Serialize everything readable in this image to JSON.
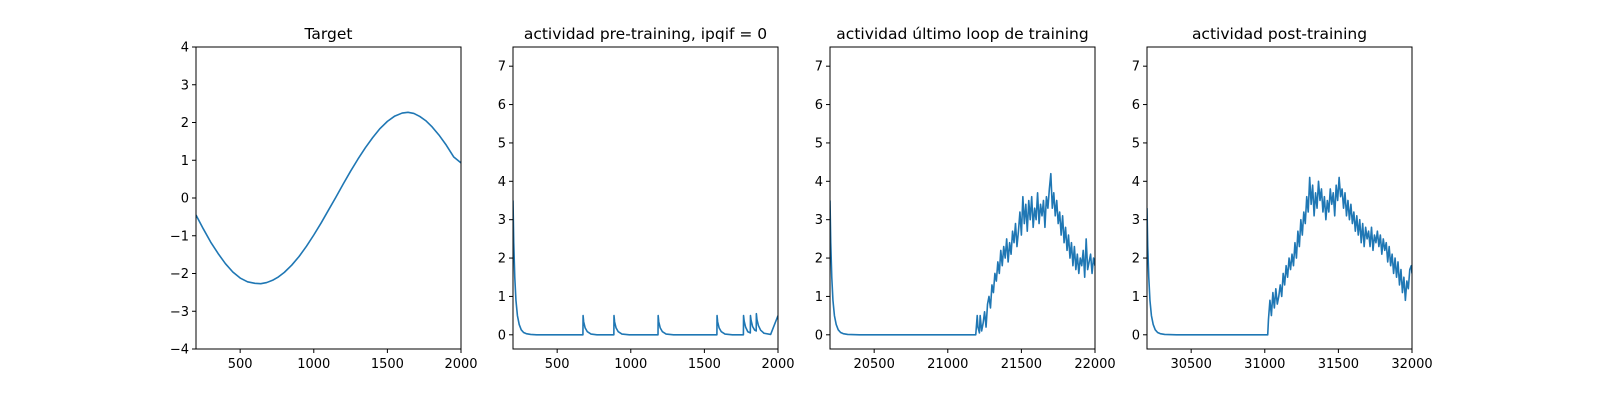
{
  "chart_data": [
    {
      "type": "line",
      "title": "Target",
      "xlabel": "",
      "ylabel": "",
      "xlim": [
        200,
        2000
      ],
      "ylim": [
        -4,
        4
      ],
      "xticks": [
        500,
        1000,
        1500,
        2000
      ],
      "xtick_labels": [
        "500",
        "1000",
        "1500",
        "2000"
      ],
      "yticks": [
        -4,
        -3,
        -2,
        -1,
        0,
        1,
        2,
        3,
        4
      ],
      "ytick_labels": [
        "−4",
        "−3",
        "−2",
        "−1",
        "0",
        "1",
        "2",
        "3",
        "4"
      ],
      "grid": false,
      "color": "#1f77b4",
      "series": [
        {
          "x": [
            200,
            250,
            300,
            350,
            400,
            450,
            500,
            550,
            600,
            640,
            680,
            720,
            760,
            800,
            850,
            900,
            950,
            1000,
            1050,
            1100,
            1150,
            1200,
            1250,
            1300,
            1350,
            1400,
            1450,
            1500,
            1550,
            1600,
            1640,
            1680,
            1720,
            1760,
            1800,
            1850,
            1900,
            1950,
            2000
          ],
          "y": [
            -0.45,
            -0.82,
            -1.17,
            -1.47,
            -1.74,
            -1.96,
            -2.12,
            -2.22,
            -2.26,
            -2.27,
            -2.24,
            -2.18,
            -2.09,
            -1.97,
            -1.78,
            -1.55,
            -1.28,
            -0.98,
            -0.66,
            -0.32,
            0.02,
            0.37,
            0.71,
            1.03,
            1.33,
            1.6,
            1.84,
            2.03,
            2.17,
            2.25,
            2.27,
            2.24,
            2.16,
            2.05,
            1.9,
            1.67,
            1.4,
            1.09,
            0.93
          ]
        }
      ]
    },
    {
      "type": "line",
      "title": "actividad pre-training, ipqif = 0",
      "xlabel": "",
      "ylabel": "",
      "xlim": [
        200,
        2000
      ],
      "ylim": [
        -0.37,
        7.5
      ],
      "xticks": [
        500,
        1000,
        1500,
        2000
      ],
      "xtick_labels": [
        "500",
        "1000",
        "1500",
        "2000"
      ],
      "yticks": [
        0,
        1,
        2,
        3,
        4,
        5,
        6,
        7
      ],
      "ytick_labels": [
        "0",
        "1",
        "2",
        "3",
        "4",
        "5",
        "6",
        "7"
      ],
      "grid": false,
      "color": "#1f77b4",
      "series": [
        {
          "x": [
            200,
            205,
            212,
            220,
            230,
            242,
            256,
            272,
            290,
            320,
            360,
            420,
            500,
            600,
            675,
            676,
            680,
            690,
            705,
            730,
            770,
            820,
            885,
            886,
            890,
            900,
            915,
            940,
            990,
            1080,
            1185,
            1186,
            1190,
            1200,
            1215,
            1240,
            1290,
            1400,
            1500,
            1585,
            1586,
            1590,
            1600,
            1615,
            1640,
            1690,
            1760,
            1765,
            1766,
            1770,
            1780,
            1795,
            1812,
            1813,
            1817,
            1827,
            1842,
            1852,
            1853,
            1857,
            1867,
            1882,
            1905,
            1950,
            2000
          ],
          "y": [
            3.5,
            2.4,
            1.5,
            0.9,
            0.5,
            0.27,
            0.13,
            0.06,
            0.03,
            0.01,
            0.0,
            0.0,
            0.0,
            0.0,
            0.0,
            0.5,
            0.34,
            0.18,
            0.08,
            0.02,
            0.0,
            0.0,
            0.0,
            0.5,
            0.34,
            0.18,
            0.08,
            0.02,
            0.0,
            0.0,
            0.0,
            0.5,
            0.34,
            0.18,
            0.08,
            0.02,
            0.0,
            0.0,
            0.0,
            0.0,
            0.5,
            0.34,
            0.18,
            0.08,
            0.02,
            0.0,
            0.0,
            0.0,
            0.5,
            0.36,
            0.2,
            0.08,
            0.05,
            0.5,
            0.38,
            0.22,
            0.12,
            0.1,
            0.55,
            0.4,
            0.24,
            0.12,
            0.04,
            0.01,
            0.5
          ]
        }
      ]
    },
    {
      "type": "line",
      "title": "actividad último loop de training",
      "xlabel": "",
      "ylabel": "",
      "xlim": [
        20200,
        22000
      ],
      "ylim": [
        -0.37,
        7.5
      ],
      "xticks": [
        20500,
        21000,
        21500,
        22000
      ],
      "xtick_labels": [
        "20500",
        "21000",
        "21500",
        "22000"
      ],
      "yticks": [
        0,
        1,
        2,
        3,
        4,
        5,
        6,
        7
      ],
      "ytick_labels": [
        "0",
        "1",
        "2",
        "3",
        "4",
        "5",
        "6",
        "7"
      ],
      "grid": false,
      "color": "#1f77b4",
      "series": [
        {
          "x": [
            20200,
            20205,
            20212,
            20220,
            20230,
            20242,
            20256,
            20272,
            20290,
            20320,
            20400,
            20700,
            21000,
            21190,
            21200,
            21205,
            21215,
            21220,
            21230,
            21240,
            21250,
            21260,
            21270,
            21280,
            21290,
            21300,
            21310,
            21320,
            21330,
            21340,
            21350,
            21360,
            21370,
            21380,
            21390,
            21400,
            21410,
            21420,
            21430,
            21440,
            21450,
            21460,
            21470,
            21480,
            21490,
            21500,
            21510,
            21520,
            21530,
            21540,
            21550,
            21560,
            21570,
            21580,
            21590,
            21600,
            21610,
            21620,
            21630,
            21640,
            21650,
            21660,
            21670,
            21680,
            21690,
            21700,
            21710,
            21720,
            21730,
            21740,
            21750,
            21760,
            21770,
            21780,
            21790,
            21800,
            21810,
            21820,
            21830,
            21840,
            21850,
            21860,
            21870,
            21880,
            21890,
            21900,
            21910,
            21920,
            21930,
            21940,
            21950,
            21960,
            21970,
            21980,
            21990,
            22000
          ],
          "y": [
            3.5,
            2.4,
            1.5,
            0.9,
            0.5,
            0.27,
            0.13,
            0.06,
            0.03,
            0.01,
            0.0,
            0.0,
            0.0,
            0.0,
            0.5,
            0.2,
            0.05,
            0.5,
            0.1,
            0.3,
            0.6,
            0.2,
            0.8,
            1.0,
            0.7,
            1.3,
            1.1,
            1.6,
            1.4,
            1.9,
            1.6,
            2.2,
            1.8,
            2.3,
            2.0,
            2.5,
            1.9,
            2.4,
            2.1,
            2.7,
            2.4,
            2.9,
            2.3,
            2.7,
            3.2,
            2.6,
            3.6,
            2.9,
            3.4,
            2.7,
            3.5,
            3.0,
            3.6,
            2.8,
            3.3,
            3.0,
            3.7,
            2.9,
            3.4,
            3.1,
            3.5,
            2.8,
            3.6,
            3.3,
            3.8,
            4.2,
            3.3,
            3.7,
            3.1,
            3.5,
            2.9,
            3.2,
            2.6,
            3.1,
            2.4,
            2.8,
            2.2,
            2.6,
            2.0,
            2.4,
            1.8,
            2.3,
            1.7,
            2.1,
            1.6,
            2.0,
            1.8,
            2.2,
            1.5,
            2.5,
            1.7,
            1.9,
            2.1,
            1.6,
            2.0,
            1.8
          ]
        }
      ]
    },
    {
      "type": "line",
      "title": "actividad post-training",
      "xlabel": "",
      "ylabel": "",
      "xlim": [
        30200,
        32000
      ],
      "ylim": [
        -0.37,
        7.5
      ],
      "xticks": [
        30500,
        31000,
        31500,
        32000
      ],
      "xtick_labels": [
        "30500",
        "31000",
        "31500",
        "32000"
      ],
      "yticks": [
        0,
        1,
        2,
        3,
        4,
        5,
        6,
        7
      ],
      "ytick_labels": [
        "0",
        "1",
        "2",
        "3",
        "4",
        "5",
        "6",
        "7"
      ],
      "grid": false,
      "color": "#1f77b4",
      "series": [
        {
          "x": [
            30200,
            30205,
            30212,
            30220,
            30230,
            30242,
            30256,
            30272,
            30290,
            30320,
            30400,
            30700,
            31000,
            31020,
            31025,
            31035,
            31045,
            31055,
            31065,
            31075,
            31085,
            31095,
            31105,
            31115,
            31125,
            31135,
            31145,
            31155,
            31165,
            31175,
            31185,
            31195,
            31205,
            31215,
            31225,
            31235,
            31245,
            31255,
            31265,
            31275,
            31285,
            31295,
            31305,
            31315,
            31325,
            31335,
            31345,
            31355,
            31365,
            31375,
            31385,
            31395,
            31405,
            31415,
            31425,
            31435,
            31445,
            31455,
            31465,
            31475,
            31485,
            31495,
            31505,
            31515,
            31525,
            31535,
            31545,
            31555,
            31565,
            31575,
            31585,
            31595,
            31605,
            31615,
            31625,
            31635,
            31645,
            31655,
            31665,
            31675,
            31685,
            31695,
            31705,
            31715,
            31725,
            31735,
            31745,
            31755,
            31765,
            31775,
            31785,
            31795,
            31805,
            31815,
            31825,
            31835,
            31845,
            31855,
            31865,
            31875,
            31885,
            31895,
            31905,
            31915,
            31925,
            31935,
            31945,
            31955,
            31965,
            31975,
            31985,
            31995,
            32000
          ],
          "y": [
            3.3,
            2.3,
            1.5,
            0.9,
            0.5,
            0.27,
            0.13,
            0.06,
            0.03,
            0.01,
            0.0,
            0.0,
            0.0,
            0.0,
            0.4,
            0.9,
            0.5,
            1.1,
            0.7,
            1.2,
            0.8,
            1.0,
            1.3,
            1.0,
            1.6,
            1.3,
            1.8,
            1.5,
            2.0,
            1.7,
            2.1,
            1.8,
            2.4,
            2.0,
            2.7,
            2.3,
            3.0,
            2.6,
            3.2,
            2.9,
            3.6,
            3.2,
            4.1,
            3.4,
            3.9,
            3.1,
            3.7,
            3.3,
            4.0,
            3.5,
            3.8,
            3.2,
            3.6,
            3.0,
            3.5,
            3.2,
            3.8,
            3.4,
            3.7,
            3.1,
            3.9,
            3.5,
            4.1,
            3.6,
            3.8,
            3.3,
            3.7,
            3.1,
            3.5,
            3.0,
            3.4,
            2.9,
            3.2,
            2.7,
            3.1,
            2.6,
            3.0,
            2.4,
            2.9,
            2.3,
            2.8,
            2.5,
            2.7,
            2.3,
            2.8,
            2.2,
            2.6,
            2.4,
            2.7,
            2.3,
            2.6,
            2.1,
            2.5,
            2.2,
            2.4,
            1.9,
            2.3,
            1.8,
            2.1,
            1.6,
            2.0,
            1.5,
            1.9,
            1.3,
            1.7,
            1.1,
            1.5,
            0.9,
            1.4,
            1.2,
            1.7,
            1.8,
            1.6
          ]
        }
      ]
    }
  ]
}
